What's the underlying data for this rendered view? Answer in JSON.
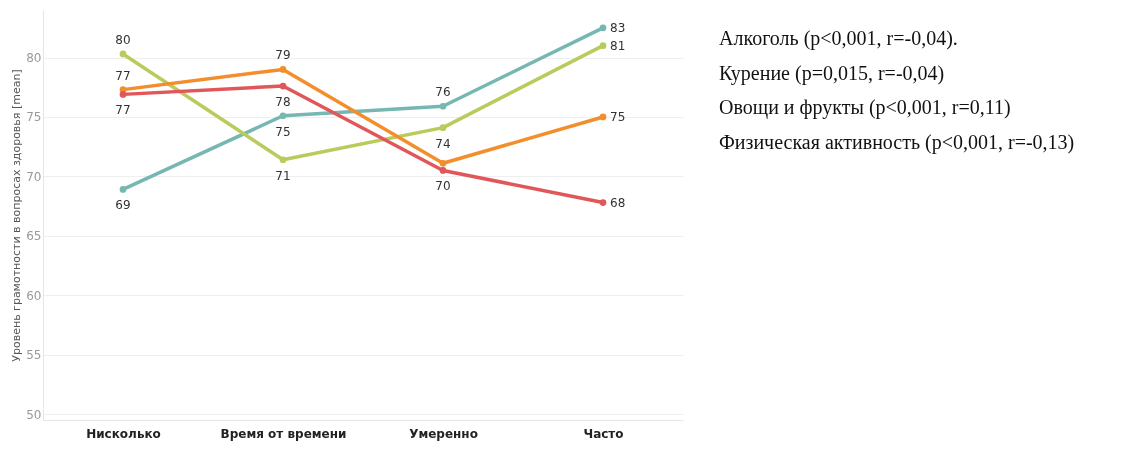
{
  "chart_data": {
    "type": "line",
    "ylabel": "Уровень грамотности в вопросах здоровья [mean]",
    "categories": [
      "Нисколько",
      "Время от времени",
      "Умеренно",
      "Часто"
    ],
    "ylim": [
      49.5,
      84
    ],
    "yticks": [
      50,
      55,
      60,
      65,
      70,
      75,
      80
    ],
    "grid": "y",
    "marker": "circle",
    "line_style": "solid",
    "series": [
      {
        "name": "Алкоголь (p<0,001, r=-0,04).",
        "color": "#76b7b2",
        "values": [
          68.9,
          75.1,
          75.9,
          82.5
        ],
        "value_labels": [
          "69",
          "75",
          "76",
          "83"
        ]
      },
      {
        "name": "Курение (p=0,015, r=-0,04)",
        "color": "#b8cc5c",
        "values": [
          80.3,
          71.4,
          74.1,
          81.0
        ],
        "value_labels": [
          "80",
          "71",
          "74",
          "81"
        ]
      },
      {
        "name": "Овощи и фрукты (p<0,001, r=0,11)",
        "color": "#f28e2b",
        "values": [
          77.3,
          79.0,
          71.1,
          75.0
        ],
        "value_labels": [
          "77",
          "79",
          null,
          "75"
        ]
      },
      {
        "name": "Физическая активность (p<0,001, r=-0,13)",
        "color": "#e15759",
        "values": [
          76.9,
          77.6,
          70.5,
          67.8
        ],
        "value_labels": [
          "77",
          "78",
          "70",
          "68"
        ]
      }
    ]
  }
}
